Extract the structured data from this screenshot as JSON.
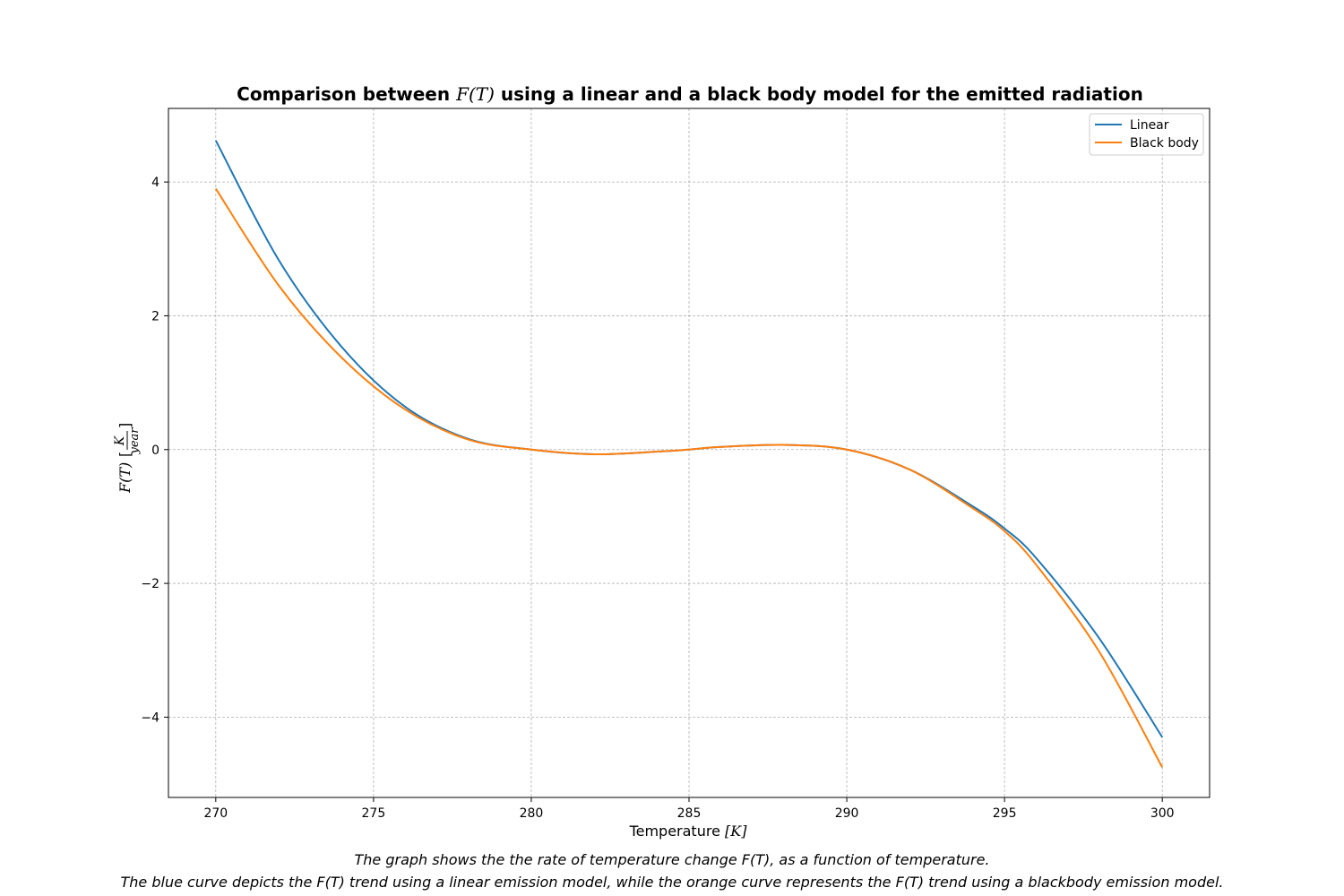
{
  "chart_data": {
    "type": "line",
    "title": {
      "prefix": "Comparison between ",
      "math": "F(T)",
      "suffix": " using a linear and a black body model for the emitted radiation"
    },
    "xlabel": {
      "text": "Temperature ",
      "unit": "[K]"
    },
    "ylabel": {
      "text": "F(T)",
      "unit_num": "K",
      "unit_den": "year"
    },
    "xlim": [
      268.5,
      301.5
    ],
    "ylim": [
      -5.2,
      5.1
    ],
    "xticks": [
      270,
      275,
      280,
      285,
      290,
      295,
      300
    ],
    "yticks": [
      4,
      2,
      0,
      -2,
      -4
    ],
    "ytick_labels": [
      "4",
      "2",
      "0",
      "−2",
      "−4"
    ],
    "grid": true,
    "legend_position": "top-right",
    "series": [
      {
        "name": "Linear",
        "color": "#1f77b4",
        "x": [
          270,
          272,
          274,
          276,
          278,
          280,
          282,
          284,
          285,
          286,
          288,
          290,
          292,
          294,
          295,
          296,
          298,
          300
        ],
        "y": [
          4.62,
          2.83,
          1.53,
          0.64,
          0.16,
          0.0,
          -0.07,
          -0.03,
          0.0,
          0.04,
          0.07,
          0.0,
          -0.3,
          -0.85,
          -1.18,
          -1.62,
          -2.82,
          -4.3
        ]
      },
      {
        "name": "Black body",
        "color": "#ff7f0e",
        "x": [
          270,
          272,
          274,
          276,
          278,
          280,
          282,
          284,
          285,
          286,
          288,
          290,
          292,
          294,
          295,
          296,
          298,
          300
        ],
        "y": [
          3.9,
          2.45,
          1.37,
          0.6,
          0.15,
          0.0,
          -0.07,
          -0.03,
          0.0,
          0.04,
          0.07,
          0.0,
          -0.3,
          -0.88,
          -1.22,
          -1.72,
          -3.02,
          -4.75
        ]
      }
    ]
  },
  "caption": {
    "line1": "The graph shows the the rate of temperature change F(T), as a function of temperature.",
    "line2": "The blue curve depicts the F(T) trend using a linear emission model, while the orange curve represents the F(T) trend using a blackbody emission model."
  }
}
